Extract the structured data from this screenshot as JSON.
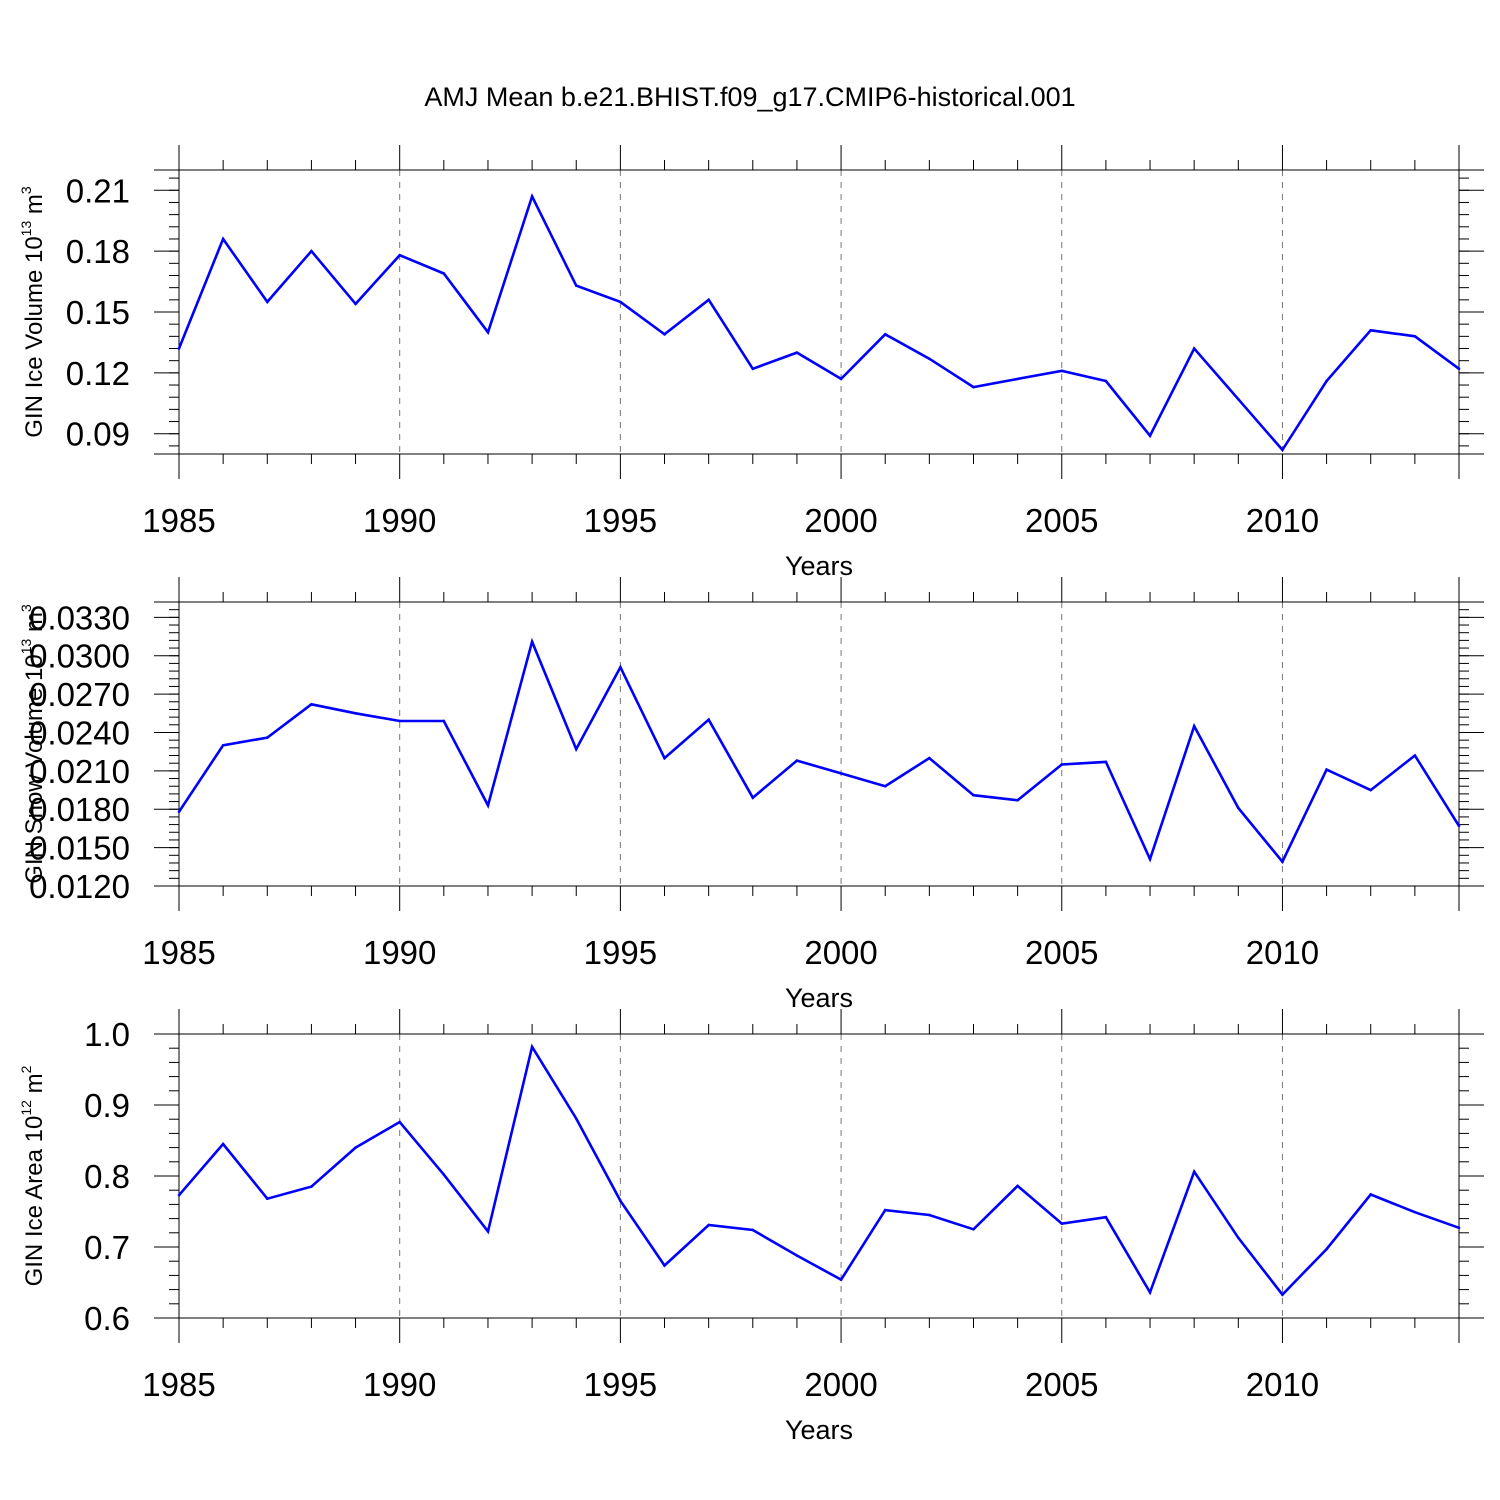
{
  "chart_data": {
    "type": "line",
    "title": "AMJ Mean b.e21.BHIST.f09_g17.CMIP6-historical.001",
    "line_color": "#0000ff",
    "x": [
      1985,
      1986,
      1987,
      1988,
      1989,
      1990,
      1991,
      1992,
      1993,
      1994,
      1995,
      1996,
      1997,
      1998,
      1999,
      2000,
      2001,
      2002,
      2003,
      2004,
      2005,
      2006,
      2007,
      2008,
      2009,
      2010,
      2011,
      2012,
      2013,
      2014
    ],
    "xlim": [
      1985,
      2014
    ],
    "xticks": [
      "1985",
      "1990",
      "1995",
      "2000",
      "2005",
      "2010"
    ],
    "xlabel": "Years",
    "panels": [
      {
        "ylabel": "GIN Ice Volume 10",
        "ylabel_exp": "13",
        "ylabel_unit": " m",
        "ylabel_unit_exp": "3",
        "ylim": [
          0.08,
          0.22
        ],
        "yticks": [
          "0.09",
          "0.12",
          "0.15",
          "0.18",
          "0.21"
        ],
        "values": [
          0.132,
          0.186,
          0.155,
          0.18,
          0.154,
          0.178,
          0.169,
          0.14,
          0.207,
          0.163,
          0.155,
          0.139,
          0.156,
          0.122,
          0.13,
          0.117,
          0.139,
          0.127,
          0.113,
          0.117,
          0.121,
          0.116,
          0.089,
          0.132,
          0.107,
          0.082,
          0.116,
          0.141,
          0.138,
          0.122
        ]
      },
      {
        "ylabel": "GIN Snow Volume 10",
        "ylabel_exp": "13",
        "ylabel_unit": " m",
        "ylabel_unit_exp": "3",
        "ylim": [
          0.012,
          0.0342
        ],
        "yticks": [
          "0.0120",
          "0.0150",
          "0.0180",
          "0.0210",
          "0.0240",
          "0.0270",
          "0.0300",
          "0.0330"
        ],
        "values": [
          0.0178,
          0.023,
          0.0236,
          0.0262,
          0.0255,
          0.0249,
          0.0249,
          0.0183,
          0.0311,
          0.0227,
          0.0291,
          0.022,
          0.025,
          0.0189,
          0.0218,
          0.0208,
          0.0198,
          0.022,
          0.0191,
          0.0187,
          0.0215,
          0.0217,
          0.0141,
          0.0245,
          0.0181,
          0.0139,
          0.0211,
          0.0195,
          0.0222,
          0.0167
        ]
      },
      {
        "ylabel": "GIN Ice Area 10",
        "ylabel_exp": "12",
        "ylabel_unit": " m",
        "ylabel_unit_exp": "2",
        "ylim": [
          0.6,
          1.0
        ],
        "yticks": [
          "0.6",
          "0.7",
          "0.8",
          "0.9",
          "1.0"
        ],
        "values": [
          0.773,
          0.845,
          0.768,
          0.785,
          0.84,
          0.876,
          0.802,
          0.722,
          0.982,
          0.881,
          0.765,
          0.674,
          0.731,
          0.724,
          0.688,
          0.654,
          0.752,
          0.745,
          0.725,
          0.786,
          0.733,
          0.742,
          0.636,
          0.806,
          0.713,
          0.633,
          0.697,
          0.774,
          0.749,
          0.727
        ]
      }
    ]
  }
}
